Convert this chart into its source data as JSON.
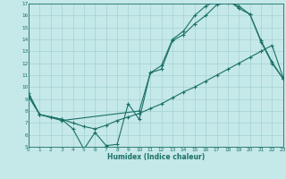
{
  "xlabel": "Humidex (Indice chaleur)",
  "bg_color": "#c5e8e8",
  "line_color": "#1a7068",
  "grid_color": "#9dcece",
  "line1_x": [
    0,
    1,
    3,
    4,
    5,
    6,
    7,
    8,
    9,
    10,
    11,
    12,
    13,
    14,
    15,
    16,
    17,
    18,
    19,
    20,
    21,
    22,
    23
  ],
  "line1_y": [
    9.5,
    7.7,
    7.3,
    6.5,
    4.8,
    6.2,
    5.1,
    5.2,
    8.6,
    7.3,
    11.2,
    11.5,
    13.9,
    14.4,
    15.3,
    16.0,
    16.9,
    17.1,
    16.8,
    16.1,
    13.8,
    12.0,
    10.7
  ],
  "line2_x": [
    0,
    1,
    2,
    3,
    4,
    5,
    6,
    7,
    8,
    9,
    10,
    11,
    12,
    13,
    14,
    15,
    16,
    17,
    18,
    19,
    20,
    21,
    22,
    23
  ],
  "line2_y": [
    9.2,
    7.7,
    7.5,
    7.3,
    7.0,
    6.7,
    6.5,
    6.8,
    7.2,
    7.5,
    7.8,
    8.2,
    8.6,
    9.1,
    9.6,
    10.0,
    10.5,
    11.0,
    11.5,
    12.0,
    12.5,
    13.0,
    13.5,
    10.8
  ],
  "line3_x": [
    0,
    1,
    3,
    10,
    11,
    12,
    13,
    14,
    15,
    16,
    17,
    18,
    19,
    20,
    21,
    22,
    23
  ],
  "line3_y": [
    9.3,
    7.7,
    7.2,
    8.0,
    11.2,
    11.8,
    14.0,
    14.7,
    16.0,
    16.8,
    17.2,
    17.3,
    16.6,
    16.1,
    13.9,
    12.1,
    10.7
  ],
  "xlim": [
    0,
    23
  ],
  "ylim": [
    5,
    17
  ],
  "yticks": [
    5,
    6,
    7,
    8,
    9,
    10,
    11,
    12,
    13,
    14,
    15,
    16,
    17
  ],
  "xticks": [
    0,
    1,
    2,
    3,
    4,
    5,
    6,
    7,
    8,
    9,
    10,
    11,
    12,
    13,
    14,
    15,
    16,
    17,
    18,
    19,
    20,
    21,
    22,
    23
  ],
  "marker_size": 2.5,
  "line_width": 0.8
}
